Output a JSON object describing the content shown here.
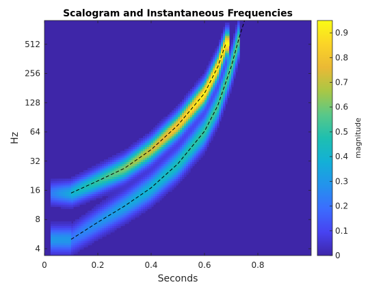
{
  "chart_data": {
    "type": "heatmap",
    "title": "Scalogram and Instantaneous Frequencies",
    "xlabel": "Seconds",
    "ylabel": "Hz",
    "xlim": [
      0,
      1
    ],
    "ylim_hz": [
      3.4,
      900
    ],
    "y_scale": "log2",
    "x_ticks": [
      "0",
      "0.2",
      "0.4",
      "0.6",
      "0.8"
    ],
    "x_tick_values": [
      0,
      0.2,
      0.4,
      0.6,
      0.8
    ],
    "y_ticks": [
      "4",
      "8",
      "16",
      "32",
      "64",
      "128",
      "256",
      "512"
    ],
    "y_tick_values": [
      4,
      8,
      16,
      32,
      64,
      128,
      256,
      512
    ],
    "colorbar": {
      "label": "magnitude",
      "range": [
        0,
        0.95
      ],
      "ticks": [
        "0",
        "0.1",
        "0.2",
        "0.3",
        "0.4",
        "0.5",
        "0.6",
        "0.7",
        "0.8",
        "0.9"
      ],
      "tick_values": [
        0,
        0.1,
        0.2,
        0.3,
        0.4,
        0.5,
        0.6,
        0.7,
        0.8,
        0.9
      ],
      "colormap": "parula"
    },
    "series": [
      {
        "style": "dashed",
        "color": "#000000",
        "x": [
          0.1,
          0.2,
          0.3,
          0.4,
          0.5,
          0.6,
          0.65,
          0.68
        ],
        "y": [
          15,
          20,
          27,
          42,
          75,
          160,
          300,
          520
        ]
      },
      {
        "style": "dashed",
        "color": "#000000",
        "x": [
          0.1,
          0.2,
          0.3,
          0.4,
          0.5,
          0.6,
          0.65,
          0.7,
          0.73,
          0.75
        ],
        "y": [
          5,
          7.5,
          11,
          17,
          30,
          65,
          120,
          300,
          600,
          900
        ]
      }
    ]
  }
}
